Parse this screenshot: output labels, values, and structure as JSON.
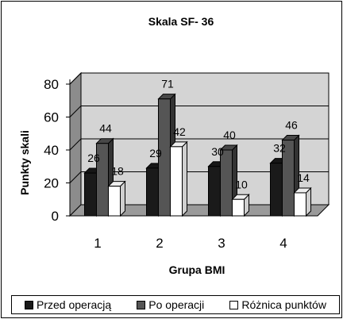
{
  "chart_data": {
    "type": "bar",
    "title": "Skala SF- 36",
    "xlabel": "Grupa BMI",
    "ylabel": "Punkty skali",
    "categories": [
      "1",
      "2",
      "3",
      "4"
    ],
    "ylim": [
      0,
      80
    ],
    "yticks": [
      "0",
      "20",
      "40",
      "60",
      "80"
    ],
    "grid": true,
    "legend_position": "bottom",
    "series": [
      {
        "name": "Przed operacją",
        "values": [
          26,
          29,
          30,
          32
        ],
        "color": "#1a1a1a"
      },
      {
        "name": "Po operacji",
        "values": [
          44,
          71,
          40,
          46
        ],
        "color": "#555555"
      },
      {
        "name": "Różnica punktów",
        "values": [
          18,
          42,
          10,
          14
        ],
        "color": "#ffffff"
      }
    ],
    "data_labels": [
      [
        "26",
        "29",
        "30",
        "32"
      ],
      [
        "44",
        "71",
        "40",
        "46"
      ],
      [
        "18",
        "42",
        "10",
        "14"
      ]
    ],
    "background_color": "#d4d4d4",
    "floor_color": "#9a9a9a"
  }
}
